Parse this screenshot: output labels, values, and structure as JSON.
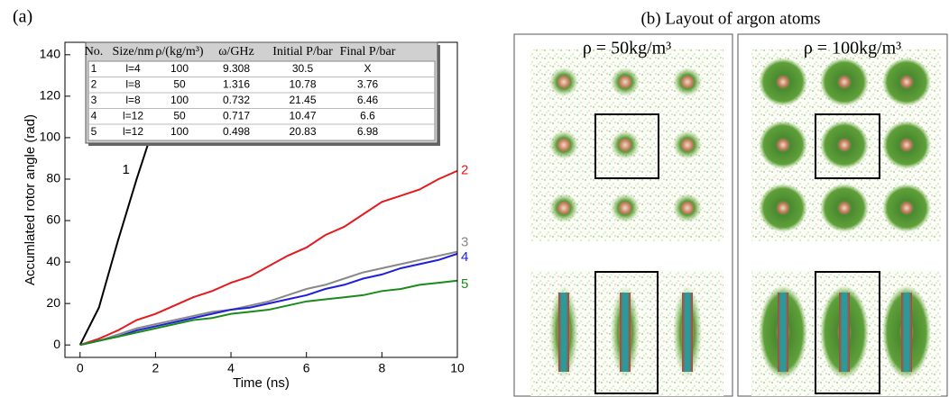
{
  "chart_data": {
    "type": "line",
    "panel_label": "(a)",
    "x_label": "Time (ns)",
    "y_label": "Accumlated rotor angle (rad)",
    "x": [
      0,
      0.5,
      1,
      1.5,
      2,
      2.5,
      3,
      3.5,
      4,
      4.5,
      5,
      5.5,
      6,
      6.5,
      7,
      7.5,
      8,
      8.5,
      9,
      9.5,
      10
    ],
    "series": [
      {
        "name": "1",
        "color": "#000000",
        "values": [
          0,
          18,
          50,
          80,
          108,
          null,
          null,
          null,
          null,
          null,
          null,
          null,
          null,
          null,
          null,
          null,
          null,
          null,
          null,
          null,
          null
        ]
      },
      {
        "name": "2",
        "color": "#e41a1c",
        "values": [
          0,
          3,
          7,
          12,
          15,
          19,
          23,
          26,
          30,
          33,
          38,
          43,
          47,
          53,
          57,
          63,
          69,
          72,
          75,
          80,
          84
        ]
      },
      {
        "name": "3",
        "color": "#888888",
        "values": [
          0,
          2,
          5,
          8,
          10,
          12,
          14,
          16,
          17,
          19,
          21,
          24,
          27,
          29,
          32,
          35,
          37,
          39,
          41,
          43,
          45
        ]
      },
      {
        "name": "4",
        "color": "#1f1fd8",
        "values": [
          0,
          2,
          4,
          7,
          9,
          11,
          13,
          15,
          17,
          18,
          20,
          22,
          24,
          27,
          29,
          32,
          34,
          37,
          39,
          41,
          44
        ]
      },
      {
        "name": "5",
        "color": "#1a8a1a",
        "values": [
          0,
          2,
          4,
          6,
          8,
          10,
          12,
          13,
          15,
          16,
          17,
          19,
          21,
          22,
          23,
          24,
          26,
          27,
          29,
          30,
          31
        ]
      }
    ],
    "xlim": [
      -0.4,
      10
    ],
    "xticks": [
      0,
      2,
      4,
      6,
      8,
      10
    ],
    "ylim": [
      -6,
      146
    ],
    "yticks": [
      0,
      20,
      40,
      60,
      80,
      100,
      120,
      140
    ],
    "table": {
      "header": [
        "No.",
        "Size/nm",
        "ρ/(kg/m³)",
        "ω/GHz",
        "Initial P/bar",
        "Final P/bar"
      ],
      "rows": [
        [
          "1",
          "l=4",
          "100",
          "9.308",
          "30.5",
          "X"
        ],
        [
          "2",
          "l=8",
          "50",
          "1.316",
          "10.78",
          "3.76"
        ],
        [
          "3",
          "l=8",
          "100",
          "0.732",
          "21.45",
          "6.46"
        ],
        [
          "4",
          "l=12",
          "50",
          "0.717",
          "10.47",
          "6.6"
        ],
        [
          "5",
          "l=12",
          "100",
          "0.498",
          "20.83",
          "6.98"
        ]
      ]
    },
    "panel_b": {
      "title": "(b) Layout of argon atoms",
      "left_label": "ρ = 50kg/m³",
      "right_label": "ρ = 100kg/m³"
    }
  }
}
